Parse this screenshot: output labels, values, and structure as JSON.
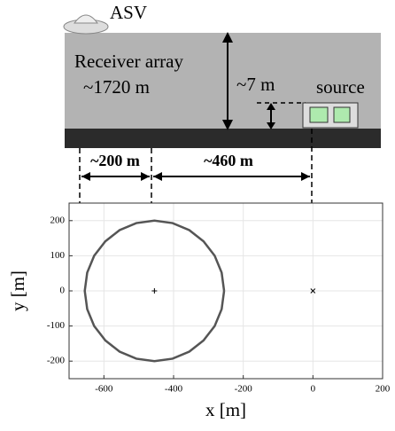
{
  "diagram": {
    "asv": "ASV",
    "receiver": "Receiver array",
    "depth": "~1720 m",
    "height": "~7 m",
    "source": "source",
    "offset_left": "~200 m",
    "offset_right": "~460 m"
  },
  "chart_data": {
    "type": "line",
    "xlabel": "x [m]",
    "ylabel": "y [m]",
    "xlim": [
      -700,
      200
    ],
    "ylim": [
      -250,
      250
    ],
    "xticks": [
      -600,
      -400,
      -200,
      0,
      200
    ],
    "yticks": [
      -200,
      -100,
      0,
      100,
      200
    ],
    "grid": true,
    "series": [
      {
        "color": "#555555",
        "x": [
          -255,
          -262,
          -282,
          -314,
          -355,
          -403,
          -455,
          -507,
          -555,
          -596,
          -628,
          -648,
          -655,
          -648,
          -628,
          -596,
          -555,
          -507,
          -455,
          -403,
          -355,
          -314,
          -282,
          -262,
          -255
        ],
        "values": [
          0,
          52,
          100,
          141,
          173,
          193,
          200,
          193,
          173,
          141,
          100,
          52,
          0,
          -52,
          -100,
          -141,
          -173,
          -193,
          -200,
          -193,
          -173,
          -141,
          -100,
          -52,
          0
        ]
      }
    ],
    "markers": {
      "receiver_center": [
        -455,
        0
      ],
      "source": [
        0,
        0
      ]
    }
  }
}
